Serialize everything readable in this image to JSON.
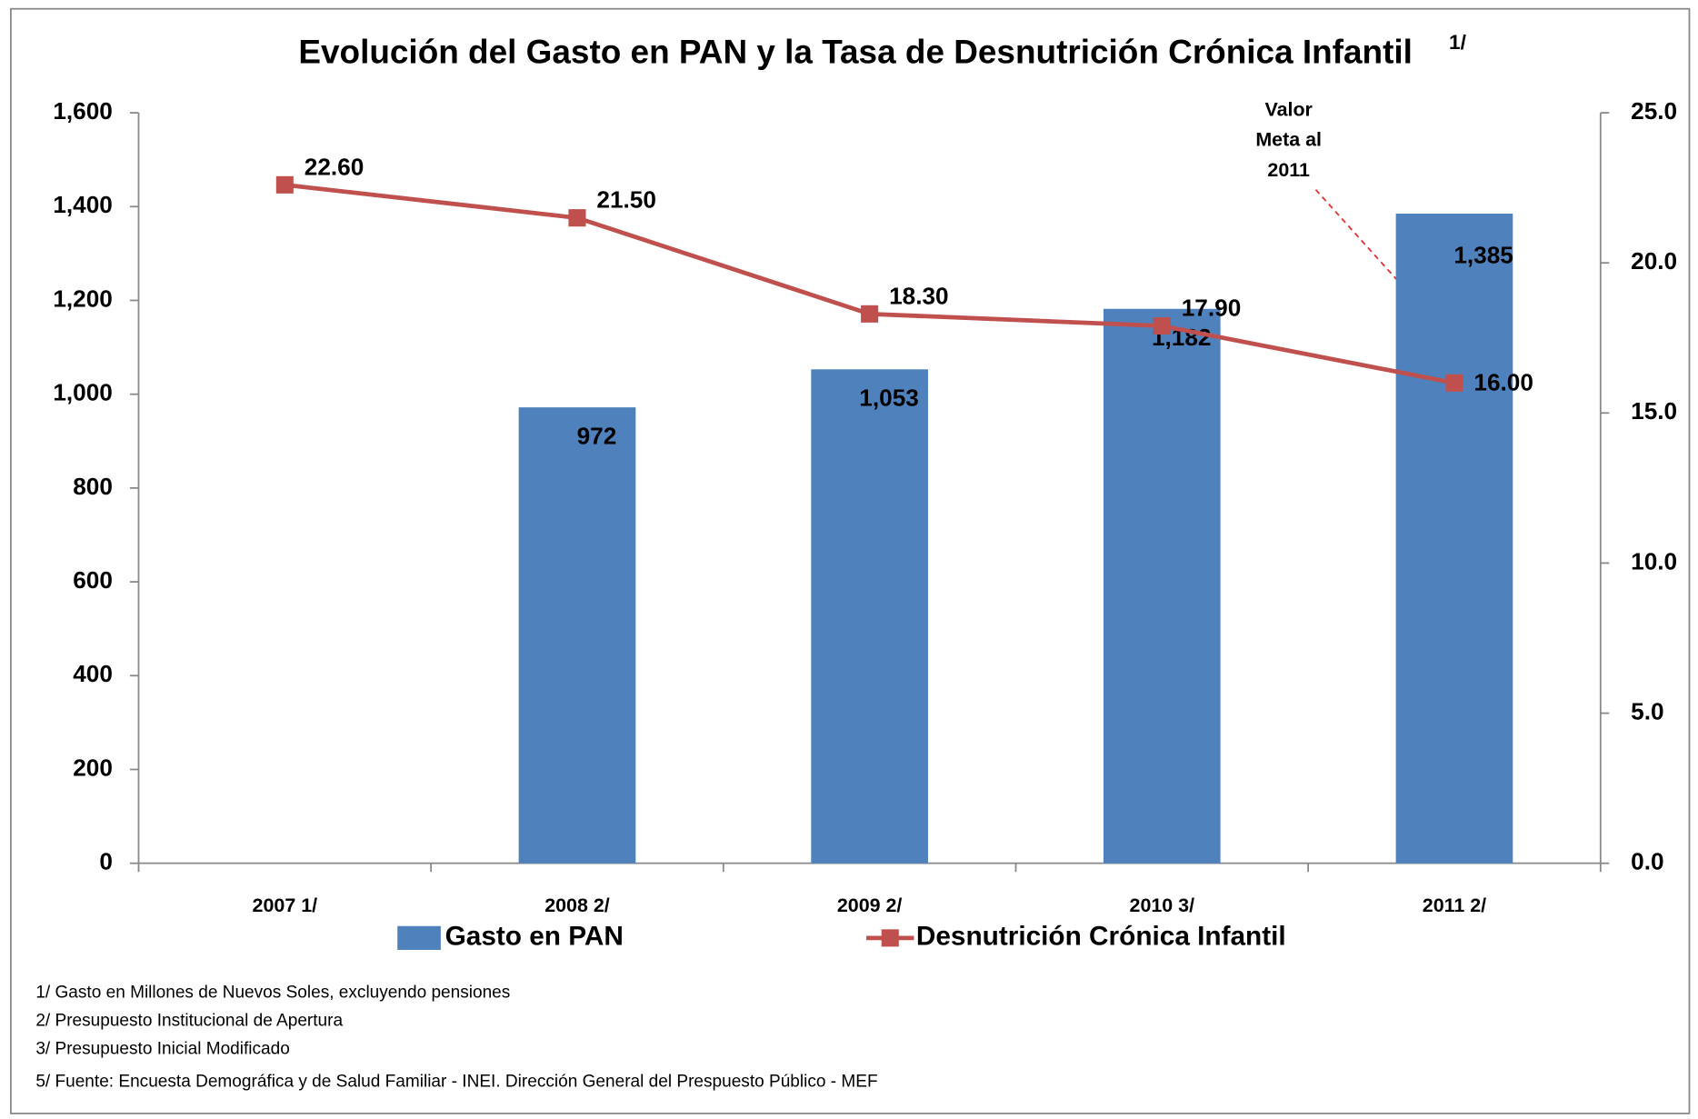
{
  "chart_data": {
    "type": "bar",
    "title": "Evolución del Gasto en PAN y la Tasa de Desnutrición Crónica Infantil",
    "title_superscript": "1/",
    "categories": [
      "2007 1/",
      "2008 2/",
      "2009 2/",
      "2010 3/",
      "2011 2/"
    ],
    "series": [
      {
        "name": "Gasto en PAN",
        "type": "bar",
        "color": "#4f81bd",
        "values": [
          null,
          972,
          1053,
          1182,
          1385
        ],
        "value_labels": [
          null,
          "972",
          "1,053",
          "1,182",
          "1,385"
        ]
      },
      {
        "name": "Desnutrición Crónica Infantil",
        "type": "line",
        "axis": "y2",
        "color": "#c0504d",
        "values": [
          22.6,
          21.5,
          18.3,
          17.9,
          16.0
        ],
        "value_labels": [
          "22.60",
          "21.50",
          "18.30",
          "17.90",
          "16.00"
        ]
      }
    ],
    "ylim": [
      0,
      1600
    ],
    "yticks": [
      0,
      200,
      400,
      600,
      800,
      {
        "value": 1000,
        "label": "1,000"
      },
      {
        "value": 1200,
        "label": "1,200"
      },
      {
        "value": 1400,
        "label": "1,400"
      },
      {
        "value": 1600,
        "label": "1,600"
      }
    ],
    "y2lim": [
      0,
      25
    ],
    "y2ticks": [
      {
        "value": 0,
        "label": "0.0"
      },
      {
        "value": 5,
        "label": "5.0"
      },
      {
        "value": 10,
        "label": "10.0"
      },
      {
        "value": 15,
        "label": "15.0"
      },
      {
        "value": 20,
        "label": "20.0"
      },
      {
        "value": 25,
        "label": "25.0"
      }
    ],
    "annotation": [
      "Valor",
      "Meta al",
      "2011"
    ],
    "legend": "bottom",
    "footnotes": [
      "1/ Gasto en Millones de Nuevos Soles, excluyendo pensiones",
      "2/ Presupuesto  Institucional de Apertura",
      "3/ Presupuesto Inicial Modificado",
      "5/ Fuente: Encuesta Demográfica y de Salud Familiar - INEI.  Dirección General del Prespuesto Público - MEF"
    ]
  }
}
